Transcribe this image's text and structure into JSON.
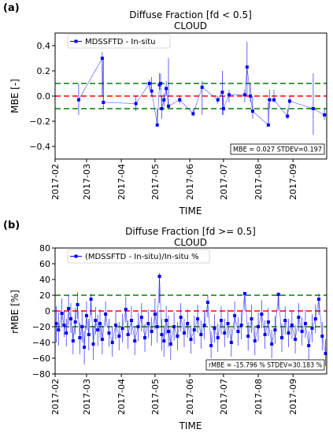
{
  "chart_data": [
    {
      "panel_label": "(a)",
      "type": "scatter",
      "title": "Diffuse Fraction [fd < 0.5]",
      "subtitle": "CLOUD",
      "xlabel": "TIME",
      "ylabel": "MBE [-]",
      "xlim": [
        "2017-02-01",
        "2017-10-01"
      ],
      "ylim": [
        -0.5,
        0.5
      ],
      "yticks": [
        "0.4",
        "0.2",
        "0.0",
        "−0.2",
        "−0.4"
      ],
      "ytick_values": [
        0.4,
        0.2,
        0.0,
        -0.2,
        -0.4
      ],
      "xticks": [
        "2017-02",
        "2017-03",
        "2017-04",
        "2017-05",
        "2017-06",
        "2017-07",
        "2017-08",
        "2017-09"
      ],
      "xtick_dates": [
        "2017-02-01",
        "2017-03-01",
        "2017-04-01",
        "2017-05-01",
        "2017-06-01",
        "2017-07-01",
        "2017-08-01",
        "2017-09-01"
      ],
      "legend": "MDSSFTD - In-situ",
      "legend_position": "top-left",
      "stats": "MBE = 0.027  STDEV=0.197",
      "series_color": "#0000ff",
      "reference_lines": [
        {
          "y": 0.1,
          "color": "#008000",
          "style": "dashed"
        },
        {
          "y": 0.0,
          "color": "#ff0000",
          "style": "dashed"
        },
        {
          "y": -0.1,
          "color": "#008000",
          "style": "dashed"
        }
      ],
      "points": [
        {
          "date": "2017-02-22",
          "y": -0.03,
          "ymin": -0.15,
          "ymax": 0.1
        },
        {
          "date": "2017-03-15",
          "y": 0.3,
          "ymin": 0.0,
          "ymax": 0.35
        },
        {
          "date": "2017-03-16",
          "y": -0.05,
          "ymin": -0.1,
          "ymax": 0.3
        },
        {
          "date": "2017-04-14",
          "y": -0.06,
          "ymin": -0.12,
          "ymax": 0.0
        },
        {
          "date": "2017-04-26",
          "y": 0.1,
          "ymin": 0.05,
          "ymax": 0.13
        },
        {
          "date": "2017-04-28",
          "y": 0.04,
          "ymin": 0.0,
          "ymax": 0.15
        },
        {
          "date": "2017-05-03",
          "y": -0.23,
          "ymin": -0.23,
          "ymax": -0.1
        },
        {
          "date": "2017-05-05",
          "y": 0.09,
          "ymin": 0.05,
          "ymax": 0.18
        },
        {
          "date": "2017-05-06",
          "y": 0.1,
          "ymin": 0.05,
          "ymax": 0.18
        },
        {
          "date": "2017-05-07",
          "y": -0.1,
          "ymin": -0.18,
          "ymax": 0.0
        },
        {
          "date": "2017-05-09",
          "y": -0.03,
          "ymin": -0.08,
          "ymax": 0.02
        },
        {
          "date": "2017-05-11",
          "y": 0.06,
          "ymin": 0.0,
          "ymax": 0.12
        },
        {
          "date": "2017-05-13",
          "y": -0.08,
          "ymin": -0.1,
          "ymax": 0.3
        },
        {
          "date": "2017-05-23",
          "y": -0.03,
          "ymin": -0.06,
          "ymax": 0.0
        },
        {
          "date": "2017-06-04",
          "y": -0.14,
          "ymin": -0.16,
          "ymax": -0.1
        },
        {
          "date": "2017-06-12",
          "y": 0.07,
          "ymin": -0.15,
          "ymax": 0.12
        },
        {
          "date": "2017-06-26",
          "y": -0.03,
          "ymin": -0.06,
          "ymax": 0.0
        },
        {
          "date": "2017-06-30",
          "y": 0.03,
          "ymin": -0.15,
          "ymax": 0.2
        },
        {
          "date": "2017-07-01",
          "y": -0.1,
          "ymin": -0.15,
          "ymax": 0.0
        },
        {
          "date": "2017-07-06",
          "y": 0.01,
          "ymin": -0.05,
          "ymax": 0.05
        },
        {
          "date": "2017-07-20",
          "y": 0.01,
          "ymin": -0.05,
          "ymax": 0.05
        },
        {
          "date": "2017-07-22",
          "y": 0.23,
          "ymin": 0.0,
          "ymax": 0.43
        },
        {
          "date": "2017-07-25",
          "y": 0.0,
          "ymin": -0.05,
          "ymax": 0.1
        },
        {
          "date": "2017-07-27",
          "y": -0.12,
          "ymin": -0.18,
          "ymax": 0.0
        },
        {
          "date": "2017-08-10",
          "y": -0.23,
          "ymin": -0.23,
          "ymax": -0.05
        },
        {
          "date": "2017-08-11",
          "y": -0.03,
          "ymin": -0.1,
          "ymax": 0.05
        },
        {
          "date": "2017-08-15",
          "y": -0.03,
          "ymin": -0.05,
          "ymax": 0.05
        },
        {
          "date": "2017-08-27",
          "y": -0.16,
          "ymin": -0.18,
          "ymax": -0.1
        },
        {
          "date": "2017-08-29",
          "y": -0.04,
          "ymin": -0.06,
          "ymax": 0.0
        },
        {
          "date": "2017-09-19",
          "y": -0.1,
          "ymin": -0.31,
          "ymax": 0.18
        },
        {
          "date": "2017-09-29",
          "y": -0.15,
          "ymin": -0.19,
          "ymax": -0.1
        }
      ]
    },
    {
      "panel_label": "(b)",
      "type": "scatter",
      "title": "Diffuse Fraction [fd >= 0.5]",
      "subtitle": "CLOUD",
      "xlabel": "TIME",
      "ylabel": "rMBE [%]",
      "xlim": [
        "2017-02-01",
        "2017-10-01"
      ],
      "ylim": [
        -80,
        80
      ],
      "yticks": [
        "80",
        "60",
        "40",
        "20",
        "0",
        "−20",
        "−40",
        "−60",
        "−80"
      ],
      "ytick_values": [
        80,
        60,
        40,
        20,
        0,
        -20,
        -40,
        -60,
        -80
      ],
      "xticks": [
        "2017-02",
        "2017-03",
        "2017-04",
        "2017-05",
        "2017-06",
        "2017-07",
        "2017-08",
        "2017-09"
      ],
      "xtick_dates": [
        "2017-02-01",
        "2017-03-01",
        "2017-04-01",
        "2017-05-01",
        "2017-06-01",
        "2017-07-01",
        "2017-08-01",
        "2017-09-01"
      ],
      "legend": "(MDSSFTD - In-situ)/In-situ %",
      "legend_position": "top-left",
      "stats": "rMBE = -15.796 % STDEV=30.183 %",
      "series_color": "#0000ff",
      "reference_lines": [
        {
          "y": 20,
          "color": "#008000",
          "style": "dashed"
        },
        {
          "y": 0,
          "color": "#ff0000",
          "style": "dashed"
        },
        {
          "y": -20,
          "color": "#008000",
          "style": "dashed"
        }
      ],
      "points": [
        {
          "date": "2017-02-02",
          "y": -16,
          "ymin": -40,
          "ymax": 6
        },
        {
          "date": "2017-02-04",
          "y": -24,
          "ymin": -44,
          "ymax": -2
        },
        {
          "date": "2017-02-07",
          "y": -3,
          "ymin": -22,
          "ymax": 16
        },
        {
          "date": "2017-02-09",
          "y": -18,
          "ymin": -33,
          "ymax": 0
        },
        {
          "date": "2017-02-11",
          "y": -28,
          "ymin": -45,
          "ymax": -10
        },
        {
          "date": "2017-02-13",
          "y": 3,
          "ymin": -18,
          "ymax": 20
        },
        {
          "date": "2017-02-15",
          "y": -10,
          "ymin": -28,
          "ymax": 10
        },
        {
          "date": "2017-02-17",
          "y": -38,
          "ymin": -55,
          "ymax": -20
        },
        {
          "date": "2017-02-19",
          "y": -14,
          "ymin": -30,
          "ymax": 4
        },
        {
          "date": "2017-02-21",
          "y": 8,
          "ymin": -10,
          "ymax": 24
        },
        {
          "date": "2017-02-23",
          "y": -34,
          "ymin": -55,
          "ymax": -15
        },
        {
          "date": "2017-02-25",
          "y": -20,
          "ymin": -40,
          "ymax": 0
        },
        {
          "date": "2017-02-27",
          "y": -46,
          "ymin": -68,
          "ymax": -25
        },
        {
          "date": "2017-03-01",
          "y": -6,
          "ymin": -24,
          "ymax": 12
        },
        {
          "date": "2017-03-03",
          "y": -30,
          "ymin": -50,
          "ymax": -10
        },
        {
          "date": "2017-03-05",
          "y": 15,
          "ymin": -5,
          "ymax": 22
        },
        {
          "date": "2017-03-07",
          "y": -42,
          "ymin": -62,
          "ymax": -20
        },
        {
          "date": "2017-03-09",
          "y": -12,
          "ymin": -30,
          "ymax": 5
        },
        {
          "date": "2017-03-11",
          "y": -24,
          "ymin": -44,
          "ymax": -5
        },
        {
          "date": "2017-03-13",
          "y": -16,
          "ymin": -34,
          "ymax": 2
        },
        {
          "date": "2017-03-15",
          "y": -36,
          "ymin": -55,
          "ymax": -18
        },
        {
          "date": "2017-03-18",
          "y": -4,
          "ymin": -20,
          "ymax": 12
        },
        {
          "date": "2017-03-21",
          "y": -28,
          "ymin": -45,
          "ymax": -10
        },
        {
          "date": "2017-03-24",
          "y": -40,
          "ymin": -58,
          "ymax": -20
        },
        {
          "date": "2017-03-27",
          "y": -18,
          "ymin": -36,
          "ymax": 0
        },
        {
          "date": "2017-03-30",
          "y": -32,
          "ymin": -50,
          "ymax": -14
        },
        {
          "date": "2017-04-02",
          "y": -22,
          "ymin": -40,
          "ymax": -4
        },
        {
          "date": "2017-04-05",
          "y": 2,
          "ymin": -15,
          "ymax": 18
        },
        {
          "date": "2017-04-07",
          "y": -30,
          "ymin": -48,
          "ymax": -12
        },
        {
          "date": "2017-04-10",
          "y": -12,
          "ymin": -30,
          "ymax": 6
        },
        {
          "date": "2017-04-13",
          "y": -38,
          "ymin": -56,
          "ymax": -20
        },
        {
          "date": "2017-04-16",
          "y": -20,
          "ymin": -38,
          "ymax": -2
        },
        {
          "date": "2017-04-19",
          "y": -8,
          "ymin": -26,
          "ymax": 10
        },
        {
          "date": "2017-04-22",
          "y": -34,
          "ymin": -52,
          "ymax": -16
        },
        {
          "date": "2017-04-25",
          "y": -16,
          "ymin": -34,
          "ymax": 2
        },
        {
          "date": "2017-04-28",
          "y": -26,
          "ymin": -44,
          "ymax": -8
        },
        {
          "date": "2017-05-01",
          "y": -4,
          "ymin": -24,
          "ymax": 16
        },
        {
          "date": "2017-05-03",
          "y": -20,
          "ymin": -40,
          "ymax": 0
        },
        {
          "date": "2017-05-05",
          "y": 44,
          "ymin": 10,
          "ymax": 48
        },
        {
          "date": "2017-05-07",
          "y": -30,
          "ymin": -50,
          "ymax": -10
        },
        {
          "date": "2017-05-09",
          "y": -38,
          "ymin": -58,
          "ymax": -18
        },
        {
          "date": "2017-05-11",
          "y": -12,
          "ymin": -30,
          "ymax": 6
        },
        {
          "date": "2017-05-13",
          "y": -26,
          "ymin": -46,
          "ymax": -6
        },
        {
          "date": "2017-05-15",
          "y": -42,
          "ymin": -62,
          "ymax": -22
        },
        {
          "date": "2017-05-18",
          "y": -20,
          "ymin": -38,
          "ymax": -2
        },
        {
          "date": "2017-05-21",
          "y": -32,
          "ymin": -50,
          "ymax": -14
        },
        {
          "date": "2017-05-24",
          "y": -8,
          "ymin": -26,
          "ymax": 10
        },
        {
          "date": "2017-05-27",
          "y": -28,
          "ymin": -46,
          "ymax": -10
        },
        {
          "date": "2017-05-30",
          "y": -16,
          "ymin": -34,
          "ymax": 2
        },
        {
          "date": "2017-06-02",
          "y": -36,
          "ymin": -54,
          "ymax": -18
        },
        {
          "date": "2017-06-05",
          "y": -24,
          "ymin": -42,
          "ymax": -6
        },
        {
          "date": "2017-06-08",
          "y": -10,
          "ymin": -28,
          "ymax": 8
        },
        {
          "date": "2017-06-11",
          "y": -30,
          "ymin": -48,
          "ymax": -12
        },
        {
          "date": "2017-06-14",
          "y": -18,
          "ymin": -36,
          "ymax": 0
        },
        {
          "date": "2017-06-17",
          "y": 11,
          "ymin": -8,
          "ymax": 20
        },
        {
          "date": "2017-06-20",
          "y": -44,
          "ymin": -60,
          "ymax": -26
        },
        {
          "date": "2017-06-23",
          "y": -22,
          "ymin": -40,
          "ymax": -4
        },
        {
          "date": "2017-06-26",
          "y": -34,
          "ymin": -52,
          "ymax": -16
        },
        {
          "date": "2017-06-29",
          "y": -12,
          "ymin": -30,
          "ymax": 6
        },
        {
          "date": "2017-07-02",
          "y": -28,
          "ymin": -46,
          "ymax": -10
        },
        {
          "date": "2017-07-05",
          "y": -16,
          "ymin": -34,
          "ymax": 2
        },
        {
          "date": "2017-07-08",
          "y": -40,
          "ymin": -58,
          "ymax": -22
        },
        {
          "date": "2017-07-11",
          "y": -6,
          "ymin": -24,
          "ymax": 12
        },
        {
          "date": "2017-07-14",
          "y": -26,
          "ymin": -44,
          "ymax": -8
        },
        {
          "date": "2017-07-17",
          "y": -18,
          "ymin": -36,
          "ymax": 0
        },
        {
          "date": "2017-07-20",
          "y": 22,
          "ymin": 0,
          "ymax": 24
        },
        {
          "date": "2017-07-23",
          "y": -32,
          "ymin": -50,
          "ymax": -14
        },
        {
          "date": "2017-07-26",
          "y": -10,
          "ymin": -28,
          "ymax": 8
        },
        {
          "date": "2017-07-29",
          "y": -38,
          "ymin": -56,
          "ymax": -20
        },
        {
          "date": "2017-08-01",
          "y": -20,
          "ymin": -38,
          "ymax": -2
        },
        {
          "date": "2017-08-04",
          "y": -4,
          "ymin": -22,
          "ymax": 14
        },
        {
          "date": "2017-08-07",
          "y": -30,
          "ymin": -48,
          "ymax": -12
        },
        {
          "date": "2017-08-10",
          "y": -14,
          "ymin": -32,
          "ymax": 4
        },
        {
          "date": "2017-08-13",
          "y": -42,
          "ymin": -60,
          "ymax": -24
        },
        {
          "date": "2017-08-16",
          "y": -24,
          "ymin": -42,
          "ymax": -6
        },
        {
          "date": "2017-08-19",
          "y": 21,
          "ymin": 0,
          "ymax": 24
        },
        {
          "date": "2017-08-22",
          "y": -34,
          "ymin": -52,
          "ymax": -16
        },
        {
          "date": "2017-08-25",
          "y": -12,
          "ymin": -30,
          "ymax": 6
        },
        {
          "date": "2017-08-28",
          "y": -28,
          "ymin": -46,
          "ymax": -10
        },
        {
          "date": "2017-08-31",
          "y": -18,
          "ymin": -36,
          "ymax": 0
        },
        {
          "date": "2017-09-03",
          "y": -36,
          "ymin": -54,
          "ymax": -18
        },
        {
          "date": "2017-09-06",
          "y": -8,
          "ymin": -26,
          "ymax": 10
        },
        {
          "date": "2017-09-09",
          "y": -26,
          "ymin": -44,
          "ymax": -8
        },
        {
          "date": "2017-09-12",
          "y": -16,
          "ymin": -34,
          "ymax": 2
        },
        {
          "date": "2017-09-15",
          "y": -44,
          "ymin": -62,
          "ymax": -26
        },
        {
          "date": "2017-09-18",
          "y": -22,
          "ymin": -40,
          "ymax": -4
        },
        {
          "date": "2017-09-21",
          "y": -10,
          "ymin": -28,
          "ymax": 8
        },
        {
          "date": "2017-09-24",
          "y": 15,
          "ymin": -5,
          "ymax": 22
        },
        {
          "date": "2017-09-27",
          "y": -32,
          "ymin": -50,
          "ymax": -14
        },
        {
          "date": "2017-09-30",
          "y": -54,
          "ymin": -70,
          "ymax": -36
        }
      ]
    }
  ]
}
